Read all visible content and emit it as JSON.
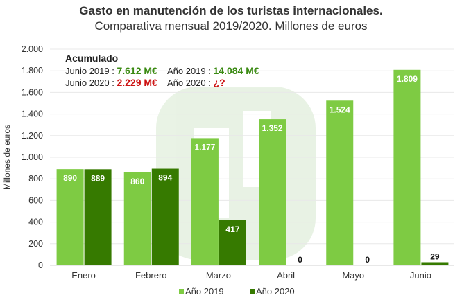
{
  "title": "Gasto en manutención de los turistas internacionales.",
  "subtitle": "Comparativa mensual 2019/2020. Millones de euros",
  "annotation": {
    "heading": "Acumulado",
    "junio2019_label": "Junio 2019 :",
    "junio2019_value": "7.612 M€",
    "junio2020_label": "Junio 2020 :",
    "junio2020_value": "2.229 M€",
    "ano2019_label": "Año 2019 :",
    "ano2019_value": "14.084 M€",
    "ano2020_label": "Año 2020 :",
    "ano2020_value": "¿?"
  },
  "colors": {
    "s2019": "#7ecb43",
    "s2020": "#367a00",
    "green_text": "#3a8a12",
    "red_text": "#cc1111"
  },
  "chart_data": {
    "type": "bar",
    "categories": [
      "Enero",
      "Febrero",
      "Marzo",
      "Abril",
      "Mayo",
      "Junio"
    ],
    "series": [
      {
        "name": "Año 2019",
        "values": [
          890,
          860,
          1177,
          1352,
          1524,
          1809
        ],
        "labels": [
          "890",
          "860",
          "1.177",
          "1.352",
          "1.524",
          "1.809"
        ]
      },
      {
        "name": "Año 2020",
        "values": [
          889,
          894,
          417,
          0,
          0,
          29
        ],
        "labels": [
          "889",
          "894",
          "417",
          "0",
          "0",
          "29"
        ]
      }
    ],
    "ylabel": "Millones de euros",
    "ylim": [
      0,
      2000
    ],
    "yticks": [
      0,
      200,
      400,
      600,
      800,
      1000,
      1200,
      1400,
      1600,
      1800,
      2000
    ],
    "ytick_labels": [
      "0",
      "200",
      "400",
      "600",
      "800",
      "1.000",
      "1.200",
      "1.400",
      "1.600",
      "1.800",
      "2.000"
    ],
    "grid": true,
    "legend": "bottom"
  }
}
